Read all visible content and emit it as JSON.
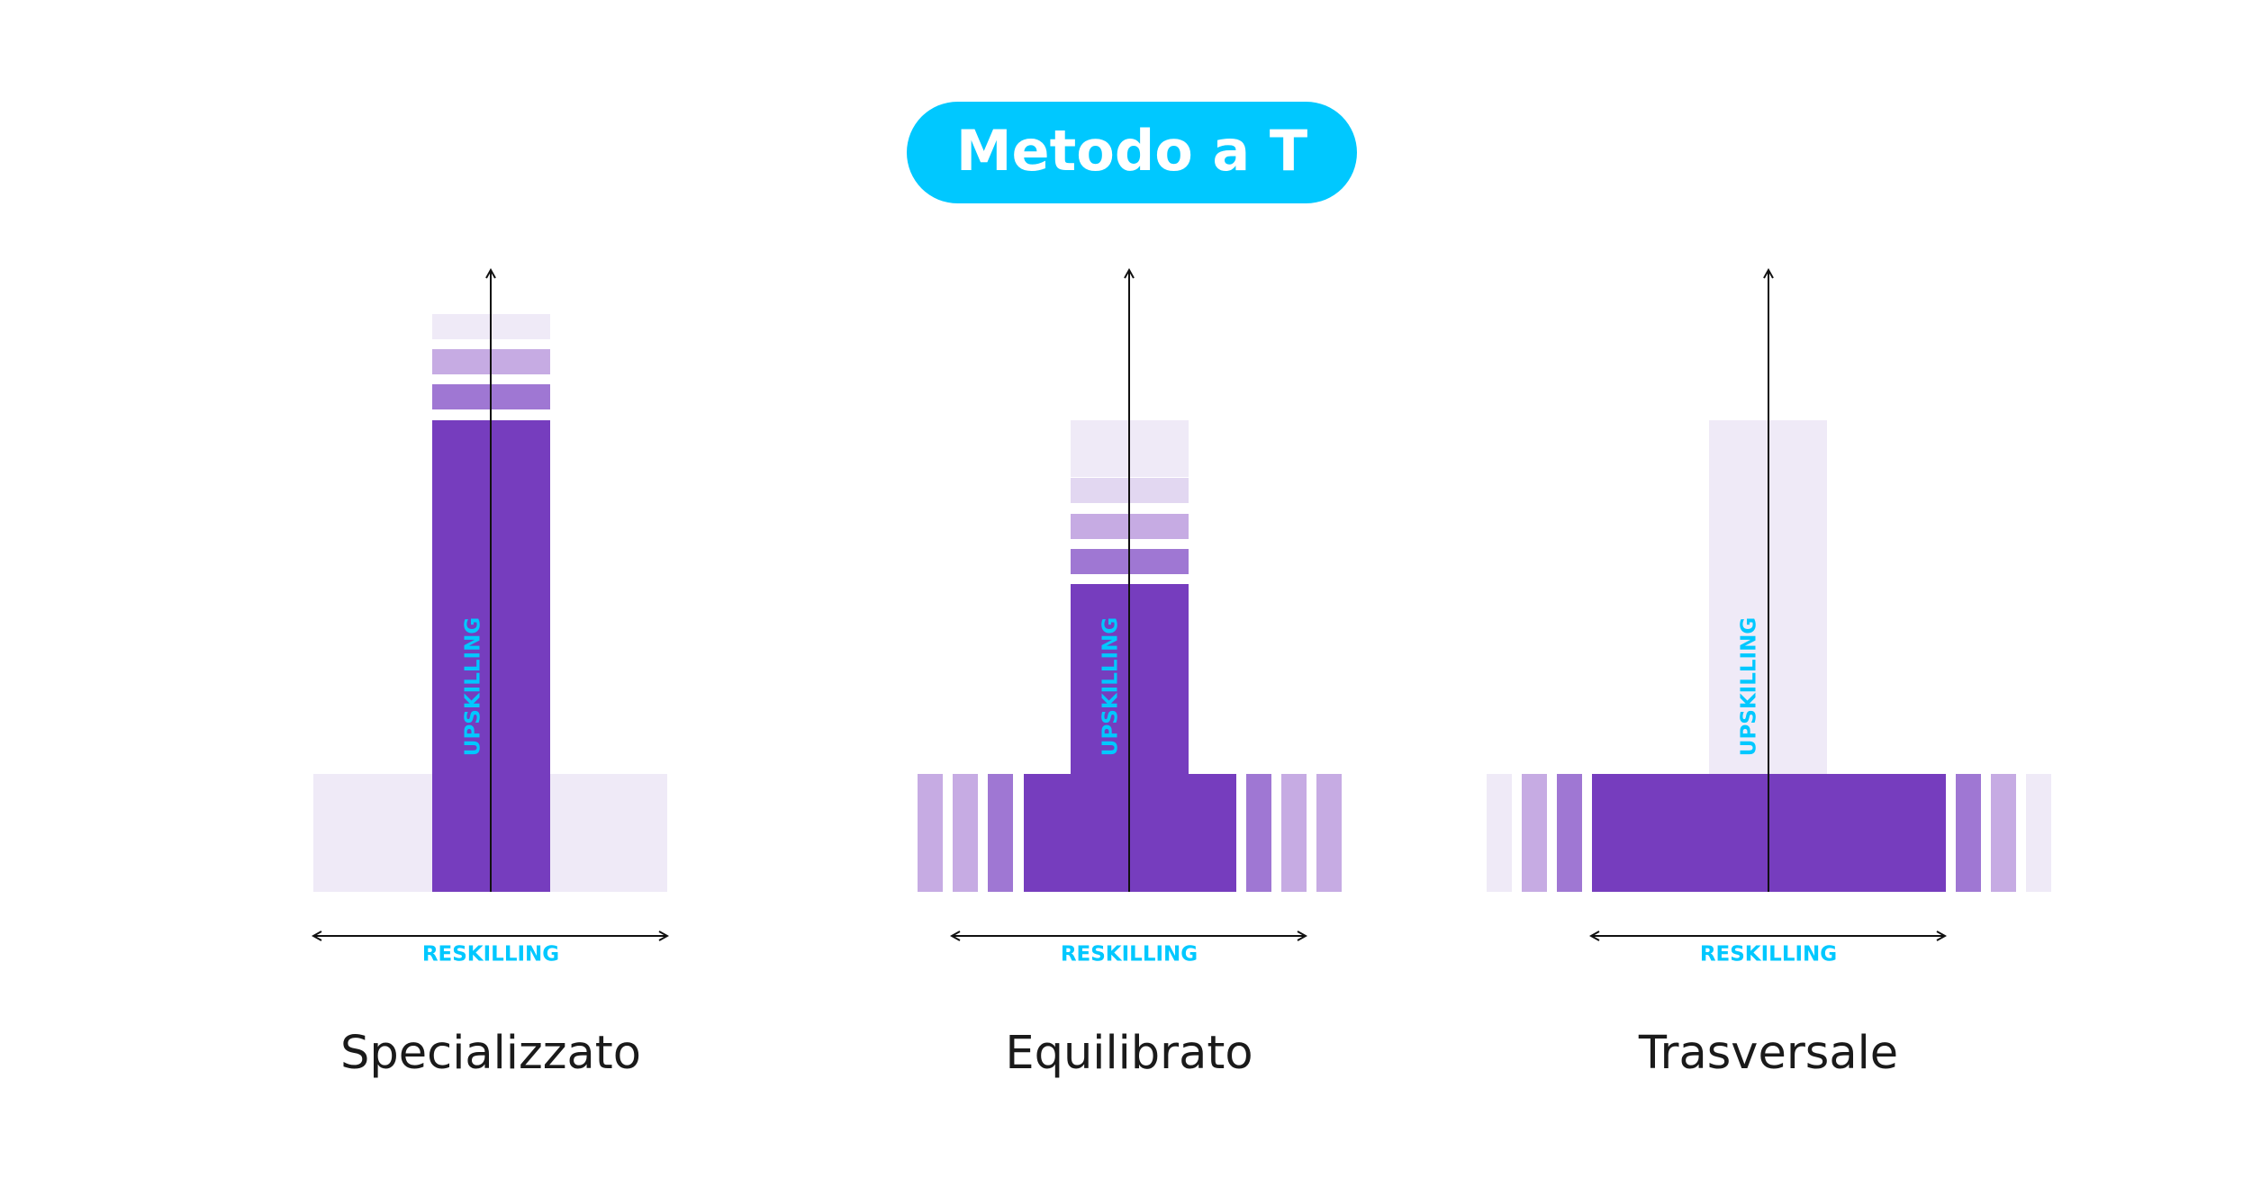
{
  "title": "Metodo a T",
  "colors": {
    "title_pill": "#00c8ff",
    "axis_label": "#00c8ff",
    "level_0": "#efeaf7",
    "level_1": "#e2d7f1",
    "level_2": "#c6abe3",
    "level_3": "#9f77d3",
    "level_4": "#763dbe",
    "caption_text": "#1a1a1a"
  },
  "diagrams": [
    {
      "id": "specializzato",
      "caption": "Specializzato",
      "vertical_axis_label": "UPSKILLING",
      "horizontal_axis_label": "RESKILLING"
    },
    {
      "id": "equilibrato",
      "caption": "Equilibrato",
      "vertical_axis_label": "UPSKILLING",
      "horizontal_axis_label": "RESKILLING"
    },
    {
      "id": "trasversale",
      "caption": "Trasversale",
      "vertical_axis_label": "UPSKILLING",
      "horizontal_axis_label": "RESKILLING"
    }
  ]
}
